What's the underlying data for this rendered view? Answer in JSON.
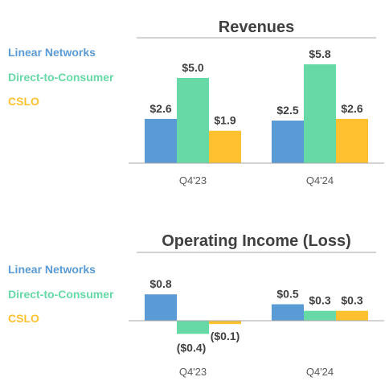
{
  "colors": {
    "linear_networks": "#5B9BD5",
    "direct_to_consumer": "#66D9A6",
    "cslo": "#FFC12F",
    "axis": "#A6A6A6",
    "text": "#404040"
  },
  "chart_data": [
    {
      "type": "bar",
      "title": "Revenues",
      "categories": [
        "Q4'23",
        "Q4'24"
      ],
      "series": [
        {
          "name": "Linear Networks",
          "values": [
            2.6,
            2.5
          ],
          "labels": [
            "$2.6",
            "$2.5"
          ]
        },
        {
          "name": "Direct-to-Consumer",
          "values": [
            5.0,
            5.8
          ],
          "labels": [
            "$5.0",
            "$5.8"
          ]
        },
        {
          "name": "CSLO",
          "values": [
            1.9,
            2.6
          ],
          "labels": [
            "$1.9",
            "$2.6"
          ]
        }
      ],
      "ylim": [
        0,
        6.5
      ],
      "grid": false,
      "legend_position": "left"
    },
    {
      "type": "bar",
      "title": "Operating Income (Loss)",
      "categories": [
        "Q4'23",
        "Q4'24"
      ],
      "series": [
        {
          "name": "Linear Networks",
          "values": [
            0.8,
            0.5
          ],
          "labels": [
            "$0.8",
            "$0.5"
          ]
        },
        {
          "name": "Direct-to-Consumer",
          "values": [
            -0.4,
            0.3
          ],
          "labels": [
            "($0.4)",
            "$0.3"
          ]
        },
        {
          "name": "CSLO",
          "values": [
            -0.1,
            0.3
          ],
          "labels": [
            "($0.1)",
            "$0.3"
          ]
        }
      ],
      "ylim": [
        -0.4,
        0.9
      ],
      "grid": false,
      "legend_position": "left"
    }
  ]
}
